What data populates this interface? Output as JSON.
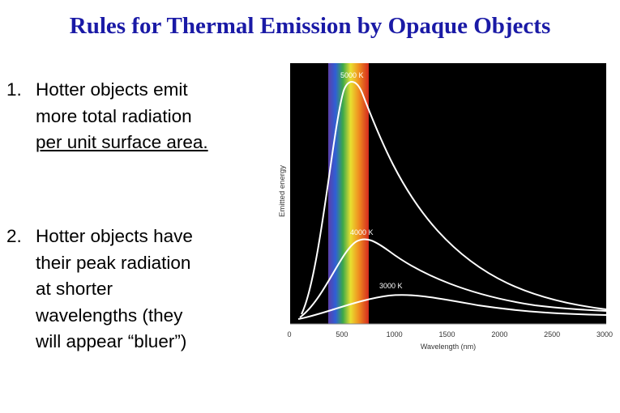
{
  "header": {
    "title": "Rules for Thermal Emission by Opaque Objects"
  },
  "items": [
    {
      "number": "1.",
      "lines": [
        "Hotter objects emit",
        "more total radiation",
        "per unit surface area."
      ]
    },
    {
      "number": "2.",
      "lines": [
        "Hotter objects have",
        "their peak radiation",
        "at shorter",
        "wavelengths (they",
        "will appear “bluer”)"
      ]
    }
  ],
  "figure": {
    "y_label": "Emitted energy",
    "x_label": "Wavelength (nm)",
    "x_ticks": [
      0,
      500,
      1000,
      1500,
      2000,
      2500,
      3000
    ],
    "curve_labels": [
      "5000 K",
      "4000 K",
      "3000 K"
    ]
  }
}
